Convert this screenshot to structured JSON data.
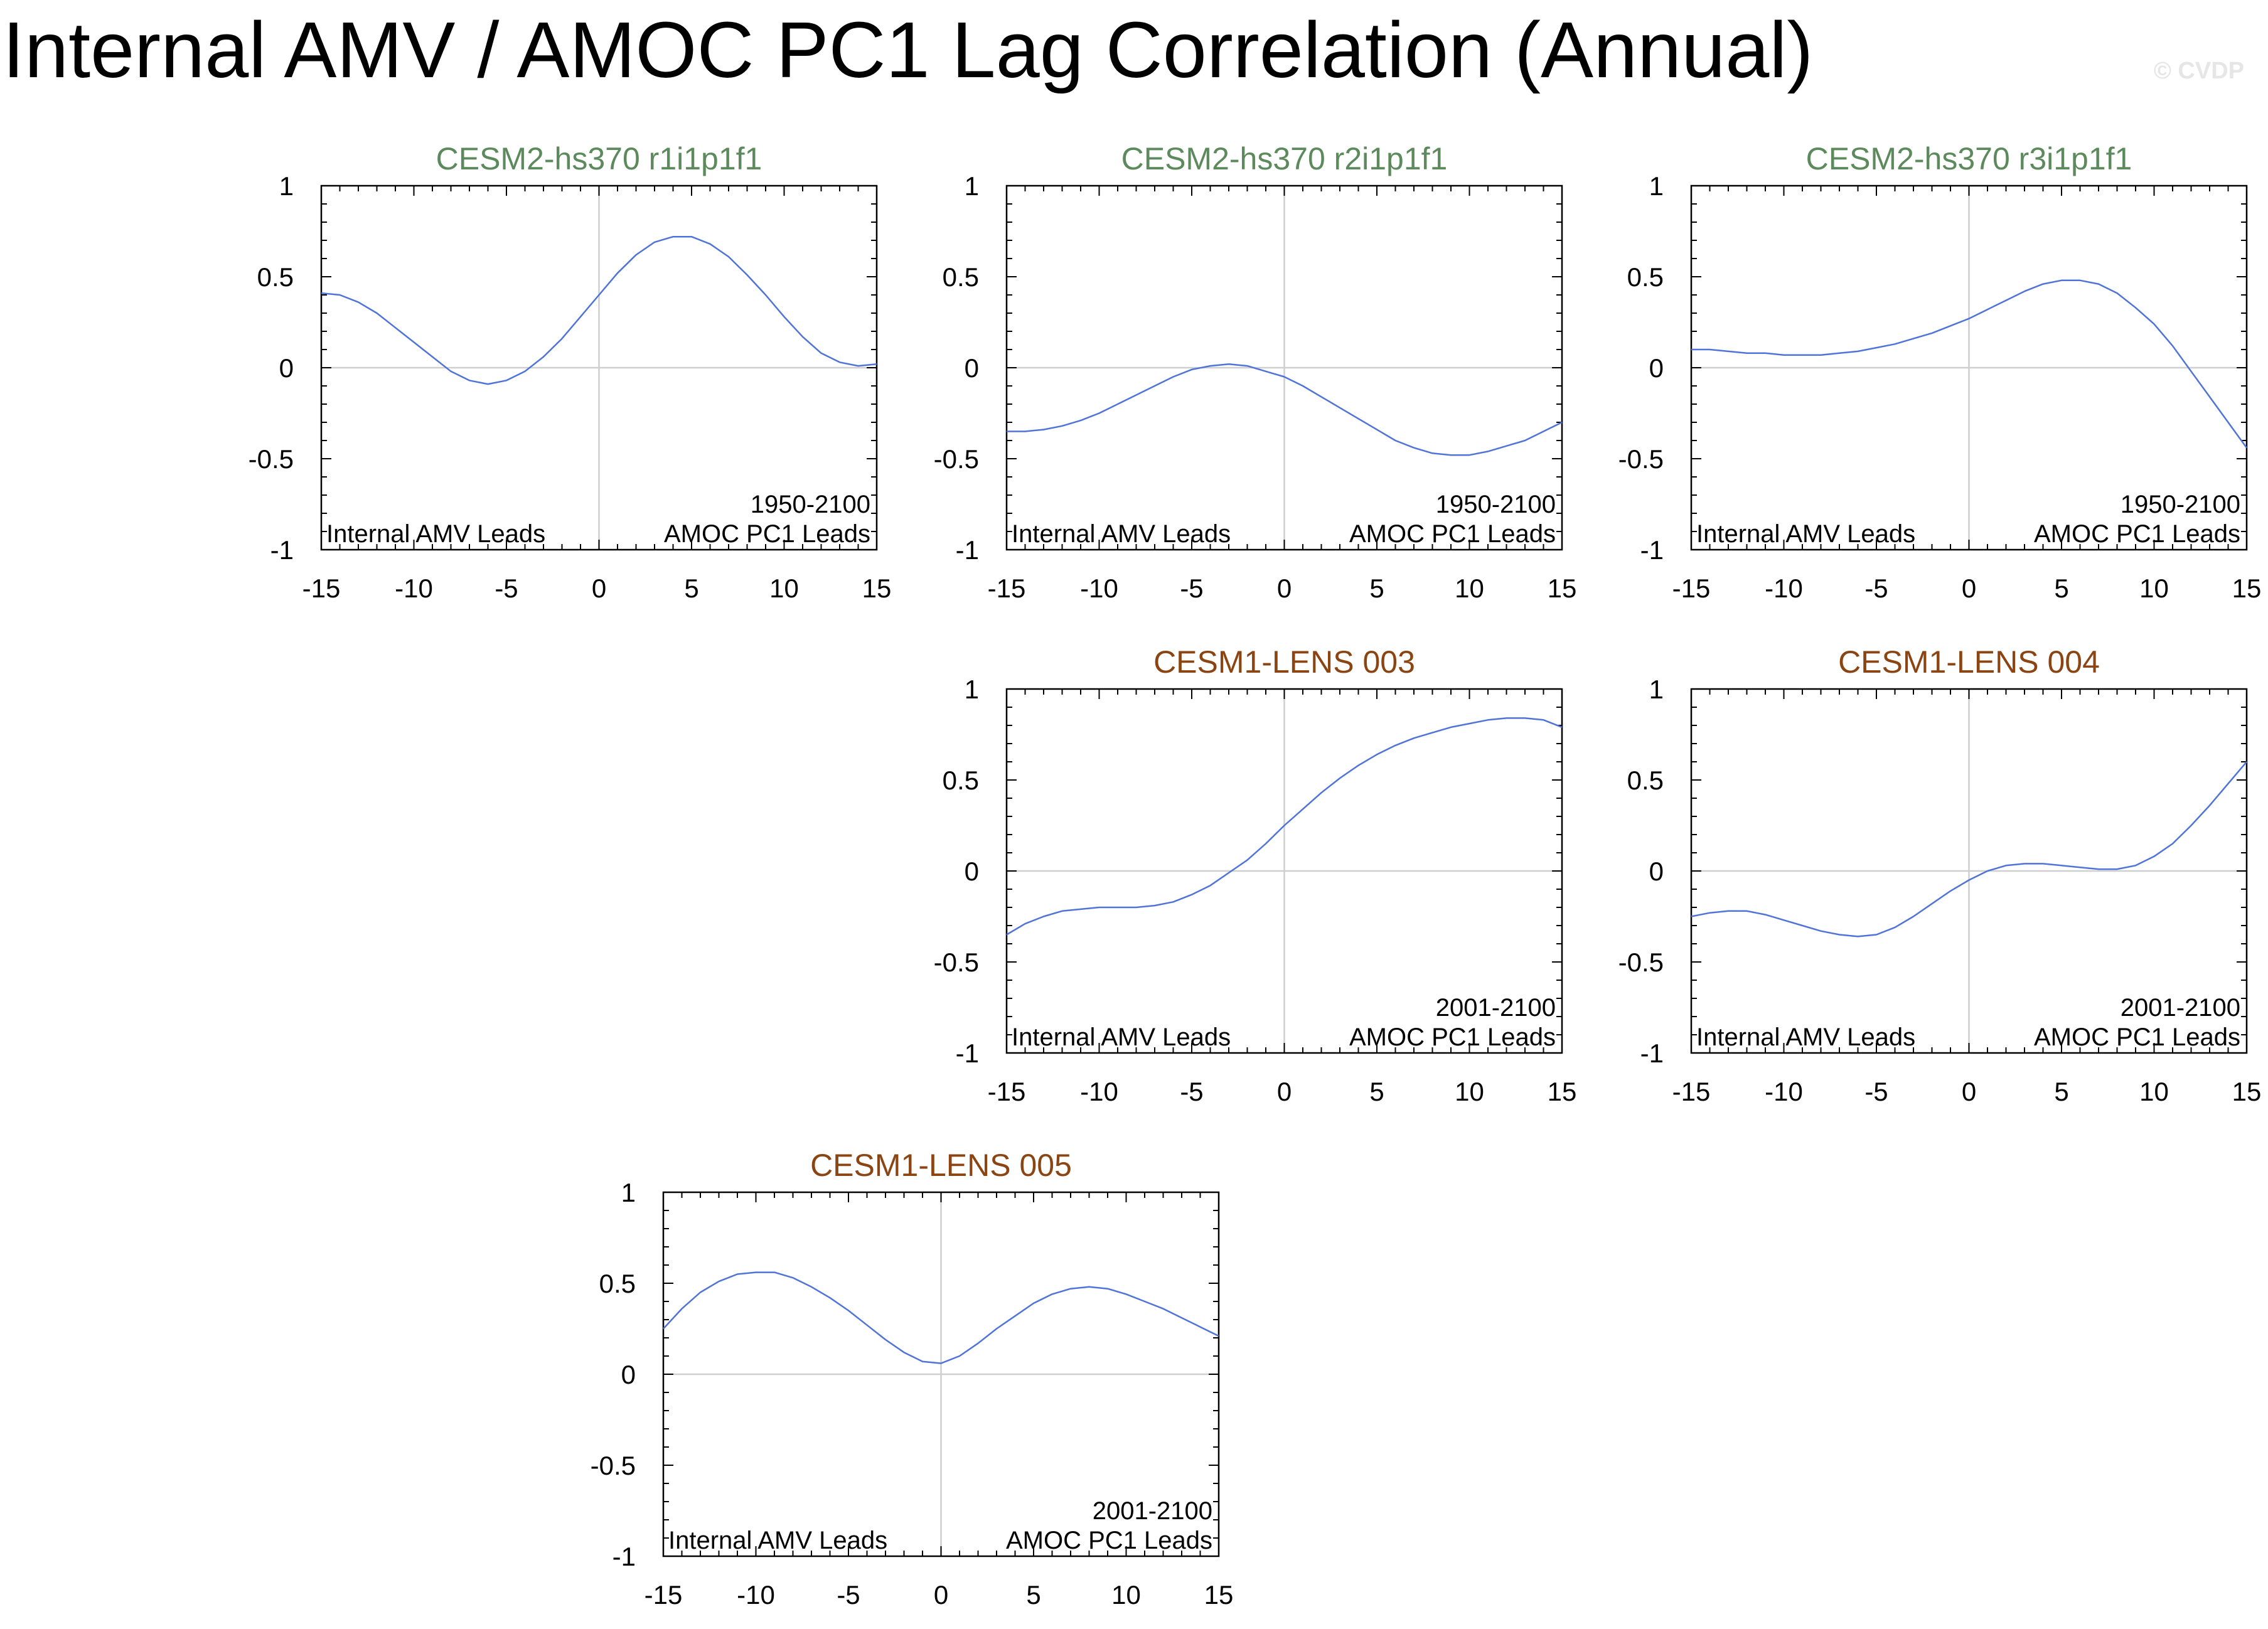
{
  "page": {
    "title": "Internal AMV / AMOC PC1 Lag Correlation (Annual)",
    "watermark": "© CVDP"
  },
  "colors": {
    "background": "#ffffff",
    "line": "#4f73d9",
    "reference_lines": "#cfcfcf",
    "axis": "#000000",
    "title_cesm2": "#5c8a5c",
    "title_cesm1": "#8b4513"
  },
  "chart_data": [
    {
      "type": "line",
      "title": "CESM2-hs370 r1i1p1f1",
      "title_color": "#5c8a5c",
      "period": "1950-2100",
      "left_label": "Internal AMV Leads",
      "right_label": "AMOC PC1 Leads",
      "xlim": [
        -15,
        15
      ],
      "ylim": [
        -1,
        1
      ],
      "xticks": [
        -15,
        -10,
        -5,
        0,
        5,
        10,
        15
      ],
      "xtick_labels": [
        "-15",
        "-10",
        "-5",
        "0",
        "5",
        "10",
        "15"
      ],
      "yticks": [
        -1,
        -0.5,
        0,
        0.5,
        1
      ],
      "ytick_labels": [
        "-1",
        "-0.5",
        "0",
        "0.5",
        "1"
      ],
      "x": [
        -15,
        -14,
        -13,
        -12,
        -11,
        -10,
        -9,
        -8,
        -7,
        -6,
        -5,
        -4,
        -3,
        -2,
        -1,
        0,
        1,
        2,
        3,
        4,
        5,
        6,
        7,
        8,
        9,
        10,
        11,
        12,
        13,
        14,
        15
      ],
      "values": [
        0.41,
        0.4,
        0.36,
        0.3,
        0.22,
        0.14,
        0.06,
        -0.02,
        -0.07,
        -0.09,
        -0.07,
        -0.02,
        0.06,
        0.16,
        0.28,
        0.4,
        0.52,
        0.62,
        0.69,
        0.72,
        0.72,
        0.68,
        0.61,
        0.51,
        0.4,
        0.28,
        0.17,
        0.08,
        0.03,
        0.01,
        0.02
      ]
    },
    {
      "type": "line",
      "title": "CESM2-hs370 r2i1p1f1",
      "title_color": "#5c8a5c",
      "period": "1950-2100",
      "left_label": "Internal AMV Leads",
      "right_label": "AMOC PC1 Leads",
      "xlim": [
        -15,
        15
      ],
      "ylim": [
        -1,
        1
      ],
      "xticks": [
        -15,
        -10,
        -5,
        0,
        5,
        10,
        15
      ],
      "xtick_labels": [
        "-15",
        "-10",
        "-5",
        "0",
        "5",
        "10",
        "15"
      ],
      "yticks": [
        -1,
        -0.5,
        0,
        0.5,
        1
      ],
      "ytick_labels": [
        "-1",
        "-0.5",
        "0",
        "0.5",
        "1"
      ],
      "x": [
        -15,
        -14,
        -13,
        -12,
        -11,
        -10,
        -9,
        -8,
        -7,
        -6,
        -5,
        -4,
        -3,
        -2,
        -1,
        0,
        1,
        2,
        3,
        4,
        5,
        6,
        7,
        8,
        9,
        10,
        11,
        12,
        13,
        14,
        15
      ],
      "values": [
        -0.35,
        -0.35,
        -0.34,
        -0.32,
        -0.29,
        -0.25,
        -0.2,
        -0.15,
        -0.1,
        -0.05,
        -0.01,
        0.01,
        0.02,
        0.01,
        -0.02,
        -0.05,
        -0.1,
        -0.16,
        -0.22,
        -0.28,
        -0.34,
        -0.4,
        -0.44,
        -0.47,
        -0.48,
        -0.48,
        -0.46,
        -0.43,
        -0.4,
        -0.35,
        -0.3
      ]
    },
    {
      "type": "line",
      "title": "CESM2-hs370 r3i1p1f1",
      "title_color": "#5c8a5c",
      "period": "1950-2100",
      "left_label": "Internal AMV Leads",
      "right_label": "AMOC PC1 Leads",
      "xlim": [
        -15,
        15
      ],
      "ylim": [
        -1,
        1
      ],
      "xticks": [
        -15,
        -10,
        -5,
        0,
        5,
        10,
        15
      ],
      "xtick_labels": [
        "-15",
        "-10",
        "-5",
        "0",
        "5",
        "10",
        "15"
      ],
      "yticks": [
        -1,
        -0.5,
        0,
        0.5,
        1
      ],
      "ytick_labels": [
        "-1",
        "-0.5",
        "0",
        "0.5",
        "1"
      ],
      "x": [
        -15,
        -14,
        -13,
        -12,
        -11,
        -10,
        -9,
        -8,
        -7,
        -6,
        -5,
        -4,
        -3,
        -2,
        -1,
        0,
        1,
        2,
        3,
        4,
        5,
        6,
        7,
        8,
        9,
        10,
        11,
        12,
        13,
        14,
        15
      ],
      "values": [
        0.1,
        0.1,
        0.09,
        0.08,
        0.08,
        0.07,
        0.07,
        0.07,
        0.08,
        0.09,
        0.11,
        0.13,
        0.16,
        0.19,
        0.23,
        0.27,
        0.32,
        0.37,
        0.42,
        0.46,
        0.48,
        0.48,
        0.46,
        0.41,
        0.33,
        0.24,
        0.12,
        -0.02,
        -0.16,
        -0.3,
        -0.44
      ]
    },
    {
      "type": "line",
      "title": "CESM1-LENS 003",
      "title_color": "#8b4513",
      "period": "2001-2100",
      "left_label": "Internal AMV Leads",
      "right_label": "AMOC PC1 Leads",
      "xlim": [
        -15,
        15
      ],
      "ylim": [
        -1,
        1
      ],
      "xticks": [
        -15,
        -10,
        -5,
        0,
        5,
        10,
        15
      ],
      "xtick_labels": [
        "-15",
        "-10",
        "-5",
        "0",
        "5",
        "10",
        "15"
      ],
      "yticks": [
        -1,
        -0.5,
        0,
        0.5,
        1
      ],
      "ytick_labels": [
        "-1",
        "-0.5",
        "0",
        "0.5",
        "1"
      ],
      "x": [
        -15,
        -14,
        -13,
        -12,
        -11,
        -10,
        -9,
        -8,
        -7,
        -6,
        -5,
        -4,
        -3,
        -2,
        -1,
        0,
        1,
        2,
        3,
        4,
        5,
        6,
        7,
        8,
        9,
        10,
        11,
        12,
        13,
        14,
        15
      ],
      "values": [
        -0.35,
        -0.29,
        -0.25,
        -0.22,
        -0.21,
        -0.2,
        -0.2,
        -0.2,
        -0.19,
        -0.17,
        -0.13,
        -0.08,
        -0.01,
        0.06,
        0.15,
        0.25,
        0.34,
        0.43,
        0.51,
        0.58,
        0.64,
        0.69,
        0.73,
        0.76,
        0.79,
        0.81,
        0.83,
        0.84,
        0.84,
        0.83,
        0.79
      ]
    },
    {
      "type": "line",
      "title": "CESM1-LENS 004",
      "title_color": "#8b4513",
      "period": "2001-2100",
      "left_label": "Internal AMV Leads",
      "right_label": "AMOC PC1 Leads",
      "xlim": [
        -15,
        15
      ],
      "ylim": [
        -1,
        1
      ],
      "xticks": [
        -15,
        -10,
        -5,
        0,
        5,
        10,
        15
      ],
      "xtick_labels": [
        "-15",
        "-10",
        "-5",
        "0",
        "5",
        "10",
        "15"
      ],
      "yticks": [
        -1,
        -0.5,
        0,
        0.5,
        1
      ],
      "ytick_labels": [
        "-1",
        "-0.5",
        "0",
        "0.5",
        "1"
      ],
      "x": [
        -15,
        -14,
        -13,
        -12,
        -11,
        -10,
        -9,
        -8,
        -7,
        -6,
        -5,
        -4,
        -3,
        -2,
        -1,
        0,
        1,
        2,
        3,
        4,
        5,
        6,
        7,
        8,
        9,
        10,
        11,
        12,
        13,
        14,
        15
      ],
      "values": [
        -0.25,
        -0.23,
        -0.22,
        -0.22,
        -0.24,
        -0.27,
        -0.3,
        -0.33,
        -0.35,
        -0.36,
        -0.35,
        -0.31,
        -0.25,
        -0.18,
        -0.11,
        -0.05,
        0.0,
        0.03,
        0.04,
        0.04,
        0.03,
        0.02,
        0.01,
        0.01,
        0.03,
        0.08,
        0.15,
        0.25,
        0.36,
        0.48,
        0.6
      ]
    },
    {
      "type": "line",
      "title": "CESM1-LENS 005",
      "title_color": "#8b4513",
      "period": "2001-2100",
      "left_label": "Internal AMV Leads",
      "right_label": "AMOC PC1 Leads",
      "xlim": [
        -15,
        15
      ],
      "ylim": [
        -1,
        1
      ],
      "xticks": [
        -15,
        -10,
        -5,
        0,
        5,
        10,
        15
      ],
      "xtick_labels": [
        "-15",
        "-10",
        "-5",
        "0",
        "5",
        "10",
        "15"
      ],
      "yticks": [
        -1,
        -0.5,
        0,
        0.5,
        1
      ],
      "ytick_labels": [
        "-1",
        "-0.5",
        "0",
        "0.5",
        "1"
      ],
      "x": [
        -15,
        -14,
        -13,
        -12,
        -11,
        -10,
        -9,
        -8,
        -7,
        -6,
        -5,
        -4,
        -3,
        -2,
        -1,
        0,
        1,
        2,
        3,
        4,
        5,
        6,
        7,
        8,
        9,
        10,
        11,
        12,
        13,
        14,
        15
      ],
      "values": [
        0.25,
        0.36,
        0.45,
        0.51,
        0.55,
        0.56,
        0.56,
        0.53,
        0.48,
        0.42,
        0.35,
        0.27,
        0.19,
        0.12,
        0.07,
        0.06,
        0.1,
        0.17,
        0.25,
        0.32,
        0.39,
        0.44,
        0.47,
        0.48,
        0.47,
        0.44,
        0.4,
        0.36,
        0.31,
        0.26,
        0.21
      ]
    }
  ]
}
